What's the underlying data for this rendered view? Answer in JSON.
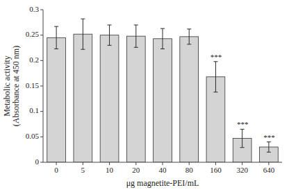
{
  "chart_data": {
    "type": "bar",
    "categories": [
      "0",
      "5",
      "10",
      "20",
      "40",
      "80",
      "160",
      "320",
      "640"
    ],
    "values": [
      0.245,
      0.252,
      0.25,
      0.248,
      0.243,
      0.247,
      0.168,
      0.047,
      0.03
    ],
    "errors": [
      0.022,
      0.03,
      0.02,
      0.022,
      0.02,
      0.015,
      0.03,
      0.018,
      0.01
    ],
    "color": "#d4d4d4",
    "ylabel": "Metabolic activity\n(Absorbance at 450 nm)",
    "xlabel": "μg magnetite-PEI/mL",
    "ylim": [
      0,
      0.3
    ],
    "yticks": [
      0,
      0.05,
      0.1,
      0.15,
      0.2,
      0.25,
      0.3
    ],
    "annotations": [
      {
        "category": "160",
        "text": "***"
      },
      {
        "category": "320",
        "text": "***"
      },
      {
        "category": "640",
        "text": "***"
      }
    ],
    "grid": false
  }
}
